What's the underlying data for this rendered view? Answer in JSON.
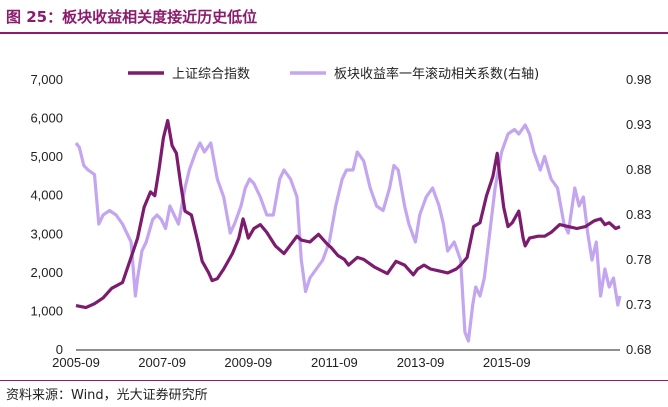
{
  "title": "图 25：板块收益相关度接近历史低位",
  "source": "资料来源：Wind，光大证券研究所",
  "colors": {
    "index": "#7b1c6e",
    "corr": "#c3a6ef",
    "accent": "#8b1c6d"
  },
  "chart_data": {
    "type": "line",
    "x_tick_labels": [
      "2005-09",
      "2007-09",
      "2009-09",
      "2011-09",
      "2013-09",
      "2015-09"
    ],
    "y_left_ticks": [
      "0",
      "1,000",
      "2,000",
      "3,000",
      "4,000",
      "5,000",
      "6,000",
      "7,000"
    ],
    "y_right_ticks": [
      "0.68",
      "0.73",
      "0.78",
      "0.83",
      "0.88",
      "0.93",
      "0.98"
    ],
    "ylim_left": [
      0,
      7000
    ],
    "ylim_right": [
      0.68,
      0.98
    ],
    "xlim": [
      2005.67,
      2018.3
    ],
    "legend_position": "top",
    "series": [
      {
        "name": "上证综合指数",
        "axis": "left",
        "points": [
          [
            2005.67,
            1150
          ],
          [
            2005.9,
            1100
          ],
          [
            2006.1,
            1200
          ],
          [
            2006.3,
            1350
          ],
          [
            2006.5,
            1600
          ],
          [
            2006.75,
            1750
          ],
          [
            2006.95,
            2400
          ],
          [
            2007.1,
            2900
          ],
          [
            2007.25,
            3700
          ],
          [
            2007.4,
            4100
          ],
          [
            2007.5,
            4000
          ],
          [
            2007.6,
            4700
          ],
          [
            2007.7,
            5500
          ],
          [
            2007.8,
            5950
          ],
          [
            2007.9,
            5300
          ],
          [
            2008.0,
            5100
          ],
          [
            2008.1,
            4300
          ],
          [
            2008.2,
            3600
          ],
          [
            2008.35,
            3500
          ],
          [
            2008.5,
            2800
          ],
          [
            2008.6,
            2300
          ],
          [
            2008.75,
            2000
          ],
          [
            2008.83,
            1800
          ],
          [
            2008.95,
            1850
          ],
          [
            2009.1,
            2100
          ],
          [
            2009.3,
            2500
          ],
          [
            2009.45,
            2900
          ],
          [
            2009.55,
            3400
          ],
          [
            2009.6,
            3200
          ],
          [
            2009.67,
            2900
          ],
          [
            2009.8,
            3150
          ],
          [
            2009.95,
            3250
          ],
          [
            2010.1,
            3050
          ],
          [
            2010.3,
            2700
          ],
          [
            2010.5,
            2500
          ],
          [
            2010.6,
            2650
          ],
          [
            2010.8,
            2950
          ],
          [
            2010.9,
            2850
          ],
          [
            2011.1,
            2800
          ],
          [
            2011.3,
            3000
          ],
          [
            2011.5,
            2750
          ],
          [
            2011.6,
            2650
          ],
          [
            2011.75,
            2450
          ],
          [
            2011.9,
            2350
          ],
          [
            2012.0,
            2200
          ],
          [
            2012.2,
            2400
          ],
          [
            2012.35,
            2350
          ],
          [
            2012.6,
            2150
          ],
          [
            2012.9,
            1980
          ],
          [
            2013.1,
            2300
          ],
          [
            2013.3,
            2200
          ],
          [
            2013.5,
            1950
          ],
          [
            2013.6,
            2100
          ],
          [
            2013.75,
            2200
          ],
          [
            2013.9,
            2100
          ],
          [
            2014.1,
            2050
          ],
          [
            2014.3,
            2000
          ],
          [
            2014.5,
            2100
          ],
          [
            2014.6,
            2200
          ],
          [
            2014.75,
            2400
          ],
          [
            2014.9,
            3200
          ],
          [
            2015.05,
            3300
          ],
          [
            2015.2,
            4000
          ],
          [
            2015.35,
            4500
          ],
          [
            2015.45,
            5100
          ],
          [
            2015.5,
            4600
          ],
          [
            2015.6,
            3700
          ],
          [
            2015.7,
            3200
          ],
          [
            2015.8,
            3300
          ],
          [
            2015.95,
            3600
          ],
          [
            2016.05,
            2900
          ],
          [
            2016.1,
            2700
          ],
          [
            2016.2,
            2900
          ],
          [
            2016.4,
            2950
          ],
          [
            2016.55,
            2950
          ],
          [
            2016.7,
            3050
          ],
          [
            2016.9,
            3250
          ],
          [
            2017.1,
            3200
          ],
          [
            2017.3,
            3150
          ],
          [
            2017.5,
            3200
          ],
          [
            2017.7,
            3350
          ],
          [
            2017.85,
            3400
          ],
          [
            2017.95,
            3250
          ],
          [
            2018.05,
            3300
          ],
          [
            2018.2,
            3150
          ],
          [
            2018.3,
            3200
          ]
        ]
      },
      {
        "name": "板块收益率一年滚动相关系数(右轴)",
        "axis": "right",
        "points": [
          [
            2005.67,
            0.91
          ],
          [
            2005.75,
            0.905
          ],
          [
            2005.85,
            0.885
          ],
          [
            2005.95,
            0.88
          ],
          [
            2006.1,
            0.875
          ],
          [
            2006.2,
            0.82
          ],
          [
            2006.3,
            0.83
          ],
          [
            2006.45,
            0.835
          ],
          [
            2006.6,
            0.83
          ],
          [
            2006.75,
            0.82
          ],
          [
            2006.85,
            0.81
          ],
          [
            2006.95,
            0.8
          ],
          [
            2007.05,
            0.74
          ],
          [
            2007.1,
            0.76
          ],
          [
            2007.2,
            0.79
          ],
          [
            2007.3,
            0.8
          ],
          [
            2007.45,
            0.825
          ],
          [
            2007.55,
            0.83
          ],
          [
            2007.65,
            0.825
          ],
          [
            2007.75,
            0.815
          ],
          [
            2007.85,
            0.84
          ],
          [
            2007.95,
            0.83
          ],
          [
            2008.05,
            0.82
          ],
          [
            2008.2,
            0.86
          ],
          [
            2008.3,
            0.88
          ],
          [
            2008.45,
            0.9
          ],
          [
            2008.55,
            0.91
          ],
          [
            2008.65,
            0.9
          ],
          [
            2008.8,
            0.91
          ],
          [
            2008.95,
            0.87
          ],
          [
            2009.1,
            0.85
          ],
          [
            2009.25,
            0.81
          ],
          [
            2009.35,
            0.82
          ],
          [
            2009.5,
            0.84
          ],
          [
            2009.6,
            0.86
          ],
          [
            2009.7,
            0.87
          ],
          [
            2009.8,
            0.865
          ],
          [
            2009.95,
            0.85
          ],
          [
            2010.1,
            0.83
          ],
          [
            2010.25,
            0.83
          ],
          [
            2010.4,
            0.87
          ],
          [
            2010.5,
            0.88
          ],
          [
            2010.65,
            0.87
          ],
          [
            2010.8,
            0.85
          ],
          [
            2010.9,
            0.78
          ],
          [
            2011.0,
            0.745
          ],
          [
            2011.1,
            0.76
          ],
          [
            2011.25,
            0.77
          ],
          [
            2011.4,
            0.78
          ],
          [
            2011.55,
            0.8
          ],
          [
            2011.7,
            0.84
          ],
          [
            2011.85,
            0.87
          ],
          [
            2011.95,
            0.88
          ],
          [
            2012.1,
            0.88
          ],
          [
            2012.2,
            0.9
          ],
          [
            2012.35,
            0.89
          ],
          [
            2012.5,
            0.86
          ],
          [
            2012.65,
            0.84
          ],
          [
            2012.8,
            0.835
          ],
          [
            2012.95,
            0.86
          ],
          [
            2013.05,
            0.885
          ],
          [
            2013.15,
            0.88
          ],
          [
            2013.3,
            0.84
          ],
          [
            2013.4,
            0.82
          ],
          [
            2013.55,
            0.8
          ],
          [
            2013.65,
            0.83
          ],
          [
            2013.8,
            0.85
          ],
          [
            2013.95,
            0.86
          ],
          [
            2014.1,
            0.84
          ],
          [
            2014.2,
            0.82
          ],
          [
            2014.3,
            0.79
          ],
          [
            2014.45,
            0.8
          ],
          [
            2014.6,
            0.78
          ],
          [
            2014.7,
            0.7
          ],
          [
            2014.78,
            0.69
          ],
          [
            2014.88,
            0.73
          ],
          [
            2014.95,
            0.75
          ],
          [
            2015.05,
            0.74
          ],
          [
            2015.15,
            0.76
          ],
          [
            2015.3,
            0.82
          ],
          [
            2015.4,
            0.86
          ],
          [
            2015.55,
            0.9
          ],
          [
            2015.7,
            0.92
          ],
          [
            2015.85,
            0.925
          ],
          [
            2015.95,
            0.92
          ],
          [
            2016.1,
            0.93
          ],
          [
            2016.2,
            0.92
          ],
          [
            2016.3,
            0.9
          ],
          [
            2016.45,
            0.88
          ],
          [
            2016.55,
            0.895
          ],
          [
            2016.7,
            0.87
          ],
          [
            2016.85,
            0.86
          ],
          [
            2017.0,
            0.82
          ],
          [
            2017.1,
            0.81
          ],
          [
            2017.25,
            0.86
          ],
          [
            2017.35,
            0.84
          ],
          [
            2017.45,
            0.85
          ],
          [
            2017.55,
            0.81
          ],
          [
            2017.65,
            0.78
          ],
          [
            2017.75,
            0.8
          ],
          [
            2017.85,
            0.74
          ],
          [
            2017.95,
            0.77
          ],
          [
            2018.05,
            0.75
          ],
          [
            2018.15,
            0.76
          ],
          [
            2018.25,
            0.73
          ],
          [
            2018.3,
            0.74
          ]
        ]
      }
    ]
  }
}
